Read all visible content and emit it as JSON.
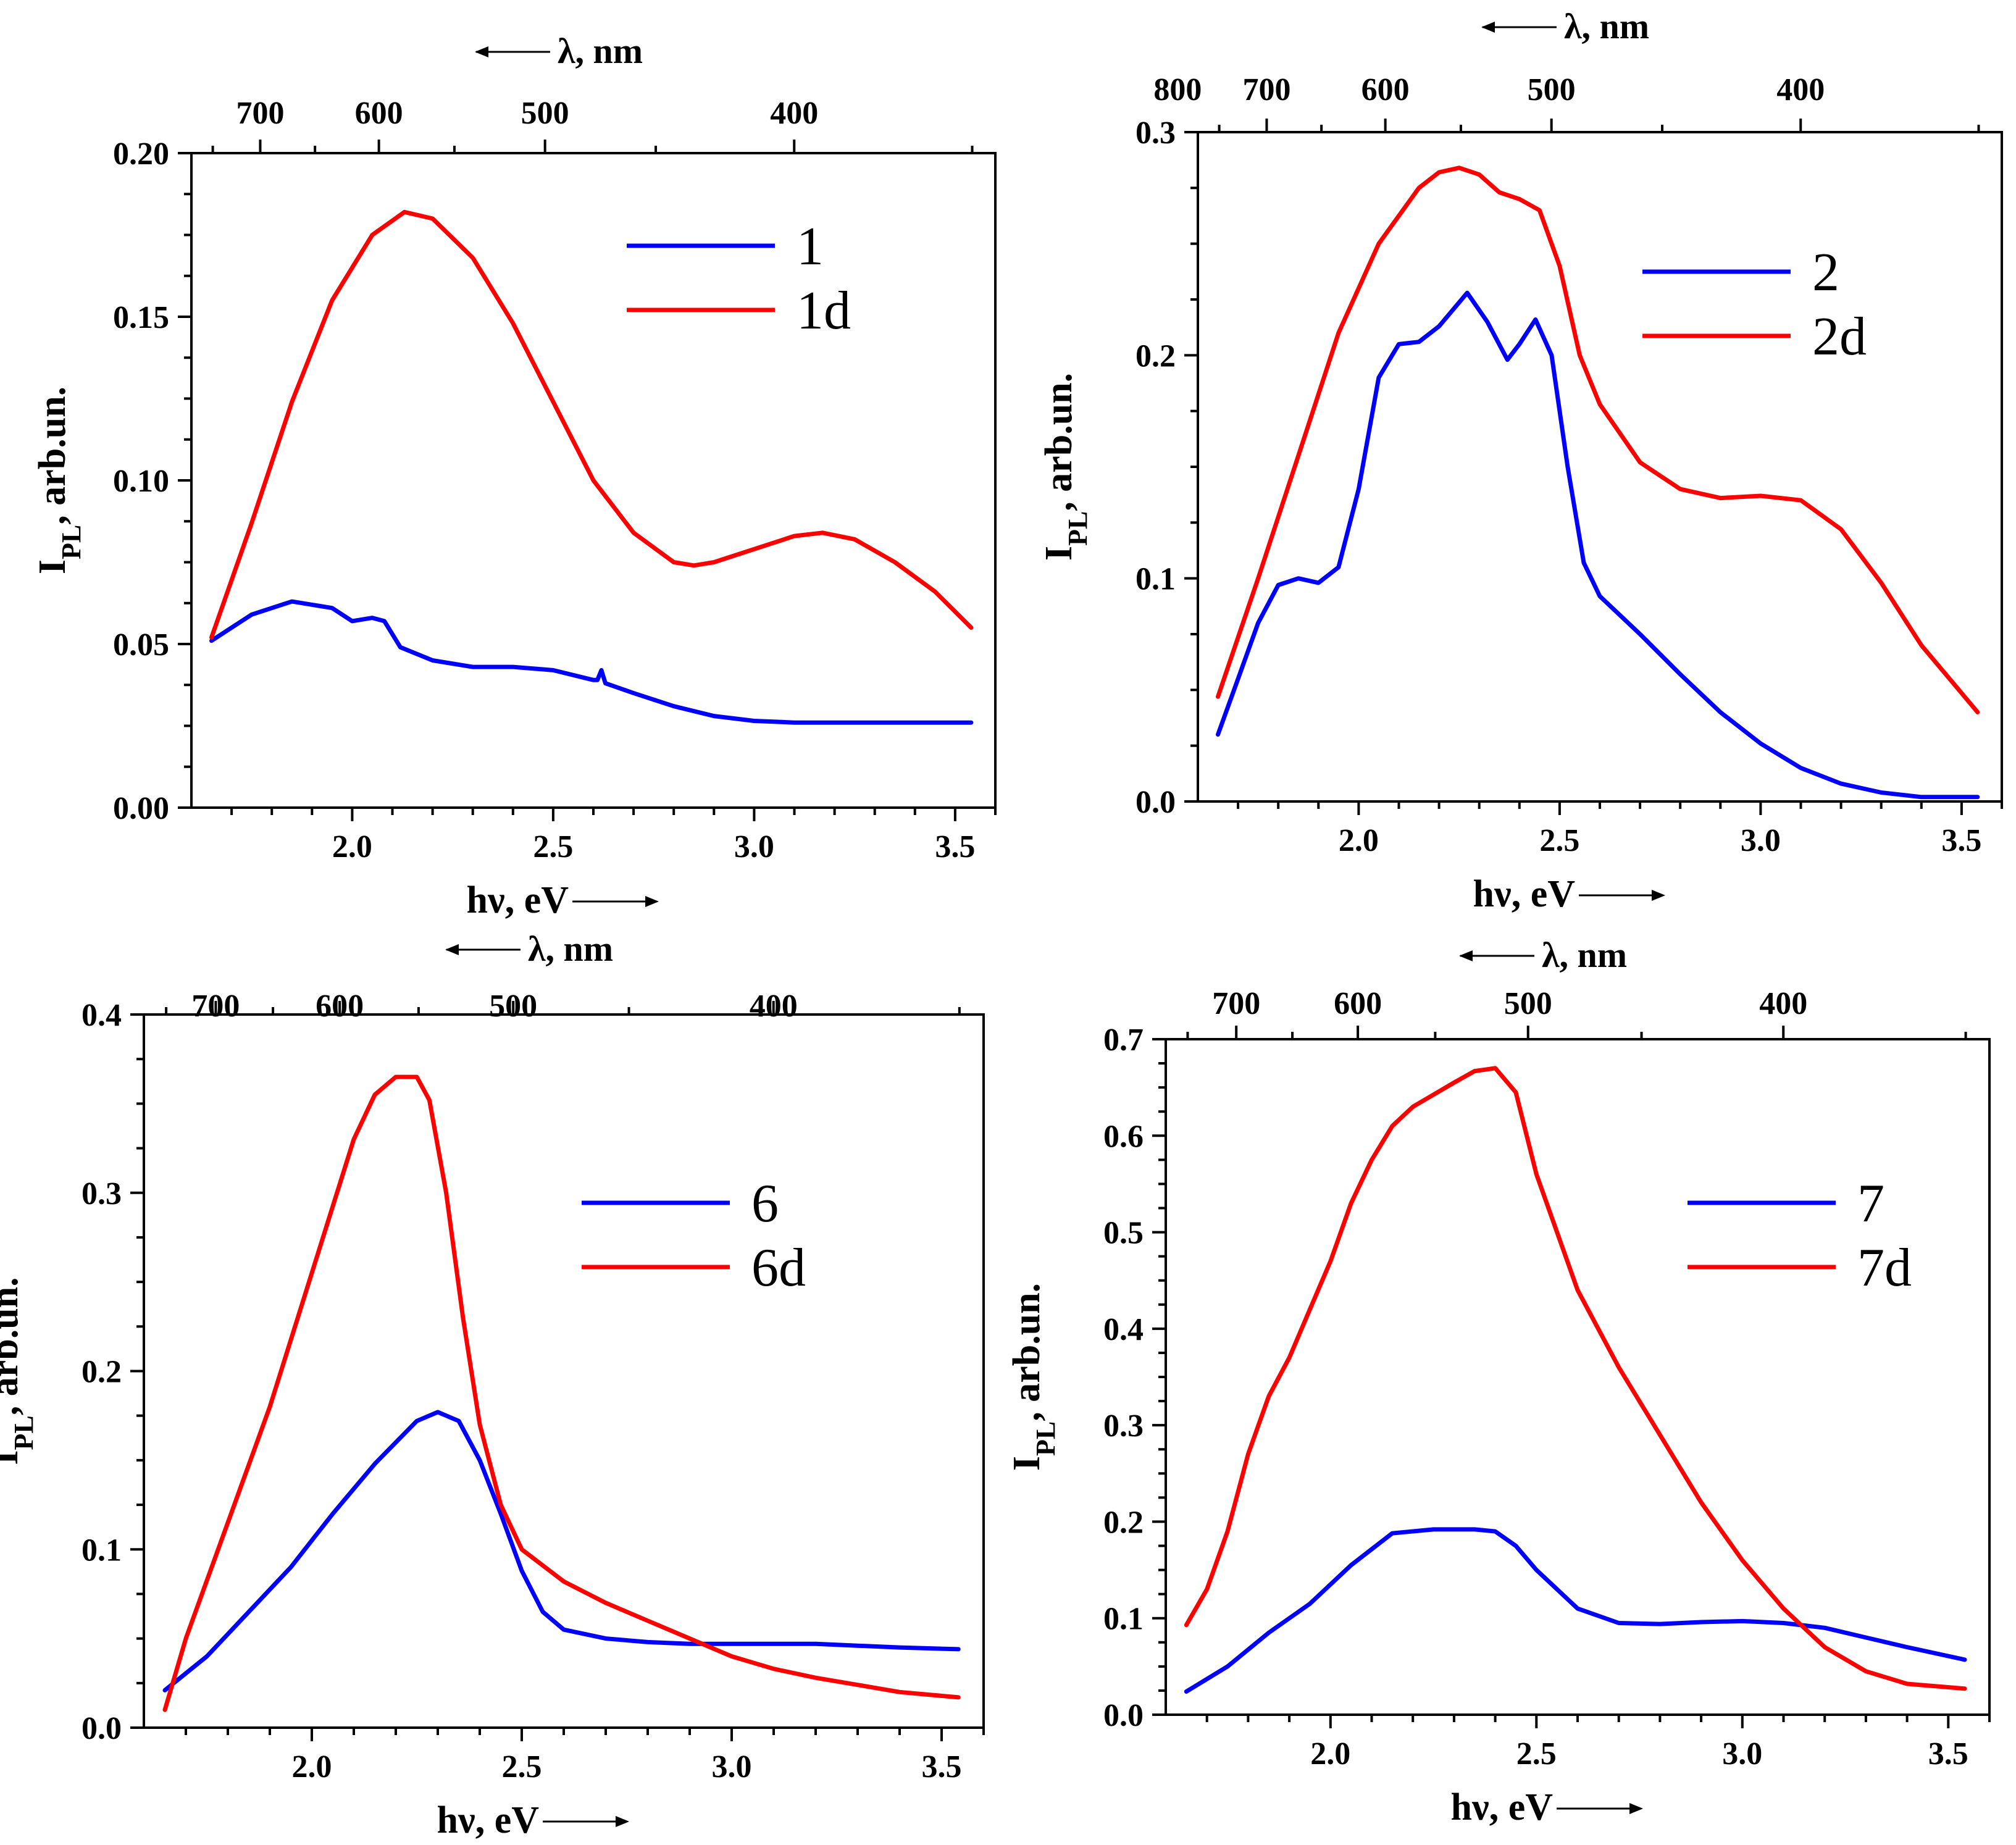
{
  "colors": {
    "series_blue": "#0000ff",
    "series_red": "#ff0000",
    "axis": "#000000"
  },
  "chart_data": [
    {
      "type": "line",
      "panel": "top-left",
      "xlabel": "hν, eV",
      "ylabel_main": "I",
      "ylabel_sub": "PL",
      "ylabel_rest": ", arb.un.",
      "top_axis_label": "λ, nm",
      "xlim": [
        1.6,
        3.6
      ],
      "ylim": [
        0,
        0.2
      ],
      "x_ticks": [
        2.0,
        2.5,
        3.0,
        3.5
      ],
      "x_tick_labels": [
        "2.0",
        "2.5",
        "3.0",
        "3.5"
      ],
      "y_ticks": [
        0,
        0.05,
        0.1,
        0.15,
        0.2
      ],
      "y_tick_labels": [
        "0.00",
        "0.05",
        "0.10",
        "0.15",
        "0.20"
      ],
      "top_ticks_nm": [
        700,
        600,
        500,
        400
      ],
      "top_tick_labels": [
        "700",
        "600",
        "500",
        "400"
      ],
      "legend_position": "top-right",
      "series": [
        {
          "name": "1",
          "color": "#0000ff",
          "x": [
            1.65,
            1.75,
            1.85,
            1.95,
            2.0,
            2.05,
            2.08,
            2.12,
            2.2,
            2.3,
            2.4,
            2.5,
            2.6,
            2.61,
            2.62,
            2.63,
            2.7,
            2.8,
            2.9,
            3.0,
            3.1,
            3.2,
            3.3,
            3.4,
            3.54
          ],
          "y": [
            0.051,
            0.059,
            0.063,
            0.061,
            0.057,
            0.058,
            0.057,
            0.049,
            0.045,
            0.043,
            0.043,
            0.042,
            0.039,
            0.039,
            0.042,
            0.038,
            0.035,
            0.031,
            0.028,
            0.0265,
            0.026,
            0.026,
            0.026,
            0.026,
            0.026
          ]
        },
        {
          "name": "1d",
          "color": "#ff0000",
          "x": [
            1.65,
            1.75,
            1.85,
            1.95,
            2.05,
            2.13,
            2.2,
            2.3,
            2.4,
            2.5,
            2.6,
            2.7,
            2.8,
            2.85,
            2.9,
            3.0,
            3.1,
            3.17,
            3.25,
            3.35,
            3.45,
            3.54
          ],
          "y": [
            0.052,
            0.087,
            0.124,
            0.155,
            0.175,
            0.182,
            0.18,
            0.168,
            0.148,
            0.124,
            0.1,
            0.084,
            0.075,
            0.074,
            0.075,
            0.079,
            0.083,
            0.084,
            0.082,
            0.075,
            0.066,
            0.055
          ]
        }
      ]
    },
    {
      "type": "line",
      "panel": "top-right",
      "xlabel": "hν, eV",
      "ylabel_main": "I",
      "ylabel_sub": "PL",
      "ylabel_rest": ", arb.un.",
      "top_axis_label": "λ, nm",
      "xlim": [
        1.6,
        3.6
      ],
      "ylim": [
        0,
        0.3
      ],
      "x_ticks": [
        2.0,
        2.5,
        3.0,
        3.5
      ],
      "x_tick_labels": [
        "2.0",
        "2.5",
        "3.0",
        "3.5"
      ],
      "y_ticks": [
        0,
        0.1,
        0.2,
        0.3
      ],
      "y_tick_labels": [
        "0.0",
        "0.1",
        "0.2",
        "0.3"
      ],
      "top_ticks_nm": [
        800,
        700,
        600,
        500,
        400
      ],
      "top_tick_labels": [
        "800",
        "700",
        "600",
        "500",
        "400"
      ],
      "legend_position": "top-right",
      "series": [
        {
          "name": "2",
          "color": "#0000ff",
          "x": [
            1.65,
            1.7,
            1.75,
            1.8,
            1.85,
            1.9,
            1.95,
            2.0,
            2.05,
            2.1,
            2.15,
            2.2,
            2.27,
            2.32,
            2.37,
            2.4,
            2.44,
            2.48,
            2.52,
            2.56,
            2.6,
            2.7,
            2.8,
            2.9,
            3.0,
            3.1,
            3.2,
            3.3,
            3.4,
            3.54
          ],
          "y": [
            0.03,
            0.055,
            0.08,
            0.097,
            0.1,
            0.098,
            0.105,
            0.14,
            0.19,
            0.205,
            0.206,
            0.213,
            0.228,
            0.215,
            0.198,
            0.205,
            0.216,
            0.2,
            0.15,
            0.107,
            0.092,
            0.075,
            0.057,
            0.04,
            0.026,
            0.015,
            0.008,
            0.004,
            0.002,
            0.002
          ]
        },
        {
          "name": "2d",
          "color": "#ff0000",
          "x": [
            1.65,
            1.75,
            1.85,
            1.95,
            2.05,
            2.15,
            2.2,
            2.25,
            2.3,
            2.35,
            2.4,
            2.45,
            2.5,
            2.55,
            2.6,
            2.7,
            2.8,
            2.9,
            3.0,
            3.1,
            3.2,
            3.3,
            3.4,
            3.54
          ],
          "y": [
            0.047,
            0.1,
            0.155,
            0.21,
            0.25,
            0.275,
            0.282,
            0.284,
            0.281,
            0.273,
            0.27,
            0.265,
            0.24,
            0.2,
            0.178,
            0.152,
            0.14,
            0.136,
            0.137,
            0.135,
            0.122,
            0.098,
            0.07,
            0.04
          ]
        }
      ]
    },
    {
      "type": "line",
      "panel": "bottom-left",
      "xlabel": "hν, eV",
      "ylabel_main": "I",
      "ylabel_sub": "PL",
      "ylabel_rest": ", arb.un.",
      "top_axis_label": "λ, nm",
      "xlim": [
        1.6,
        3.6
      ],
      "ylim": [
        0,
        0.4
      ],
      "x_ticks": [
        2.0,
        2.5,
        3.0,
        3.5
      ],
      "x_tick_labels": [
        "2.0",
        "2.5",
        "3.0",
        "3.5"
      ],
      "y_ticks": [
        0,
        0.1,
        0.2,
        0.3,
        0.4
      ],
      "y_tick_labels": [
        "0.0",
        "0.1",
        "0.2",
        "0.3",
        "0.4"
      ],
      "top_ticks_nm": [
        700,
        600,
        500,
        400
      ],
      "top_tick_labels": [
        "700",
        "600",
        "500",
        "400"
      ],
      "legend_position": "top-right",
      "series": [
        {
          "name": "6",
          "color": "#0000ff",
          "x": [
            1.65,
            1.75,
            1.85,
            1.95,
            2.05,
            2.15,
            2.25,
            2.3,
            2.35,
            2.4,
            2.45,
            2.5,
            2.55,
            2.6,
            2.7,
            2.8,
            2.9,
            3.0,
            3.1,
            3.2,
            3.3,
            3.4,
            3.54
          ],
          "y": [
            0.021,
            0.04,
            0.065,
            0.09,
            0.12,
            0.148,
            0.172,
            0.177,
            0.172,
            0.15,
            0.12,
            0.088,
            0.065,
            0.055,
            0.05,
            0.048,
            0.047,
            0.047,
            0.047,
            0.047,
            0.046,
            0.045,
            0.044
          ]
        },
        {
          "name": "6d",
          "color": "#ff0000",
          "x": [
            1.65,
            1.7,
            1.8,
            1.9,
            2.0,
            2.1,
            2.15,
            2.2,
            2.25,
            2.28,
            2.32,
            2.36,
            2.4,
            2.45,
            2.5,
            2.6,
            2.7,
            2.8,
            2.9,
            3.0,
            3.1,
            3.2,
            3.3,
            3.4,
            3.54
          ],
          "y": [
            0.01,
            0.05,
            0.115,
            0.18,
            0.255,
            0.33,
            0.355,
            0.365,
            0.365,
            0.352,
            0.3,
            0.23,
            0.17,
            0.125,
            0.1,
            0.082,
            0.07,
            0.06,
            0.05,
            0.04,
            0.033,
            0.028,
            0.024,
            0.02,
            0.017
          ]
        }
      ]
    },
    {
      "type": "line",
      "panel": "bottom-right",
      "xlabel": "hν, eV",
      "ylabel_main": "I",
      "ylabel_sub": "PL",
      "ylabel_rest": ", arb.un.",
      "top_axis_label": "λ, nm",
      "xlim": [
        1.6,
        3.6
      ],
      "ylim": [
        0,
        0.7
      ],
      "x_ticks": [
        2.0,
        2.5,
        3.0,
        3.5
      ],
      "x_tick_labels": [
        "2.0",
        "2.5",
        "3.0",
        "3.5"
      ],
      "y_ticks": [
        0,
        0.1,
        0.2,
        0.3,
        0.4,
        0.5,
        0.6,
        0.7
      ],
      "y_tick_labels": [
        "0.0",
        "0.1",
        "0.2",
        "0.3",
        "0.4",
        "0.5",
        "0.6",
        "0.7"
      ],
      "top_ticks_nm": [
        700,
        600,
        500,
        400
      ],
      "top_tick_labels": [
        "700",
        "600",
        "500",
        "400"
      ],
      "legend_position": "center-right",
      "series": [
        {
          "name": "7",
          "color": "#0000ff",
          "x": [
            1.65,
            1.75,
            1.85,
            1.95,
            2.05,
            2.15,
            2.25,
            2.35,
            2.4,
            2.45,
            2.5,
            2.6,
            2.7,
            2.8,
            2.9,
            3.0,
            3.1,
            3.2,
            3.3,
            3.4,
            3.54
          ],
          "y": [
            0.024,
            0.05,
            0.085,
            0.115,
            0.155,
            0.188,
            0.192,
            0.192,
            0.19,
            0.175,
            0.15,
            0.11,
            0.095,
            0.094,
            0.096,
            0.097,
            0.095,
            0.09,
            0.08,
            0.07,
            0.057
          ]
        },
        {
          "name": "7d",
          "color": "#ff0000",
          "x": [
            1.65,
            1.7,
            1.75,
            1.8,
            1.85,
            1.9,
            1.95,
            2.0,
            2.05,
            2.1,
            2.15,
            2.2,
            2.3,
            2.35,
            2.4,
            2.45,
            2.5,
            2.6,
            2.7,
            2.8,
            2.9,
            3.0,
            3.1,
            3.2,
            3.3,
            3.4,
            3.54
          ],
          "y": [
            0.093,
            0.13,
            0.19,
            0.27,
            0.33,
            0.37,
            0.42,
            0.47,
            0.53,
            0.575,
            0.61,
            0.63,
            0.655,
            0.667,
            0.67,
            0.645,
            0.56,
            0.44,
            0.36,
            0.29,
            0.22,
            0.16,
            0.11,
            0.07,
            0.045,
            0.032,
            0.027
          ]
        }
      ]
    }
  ]
}
